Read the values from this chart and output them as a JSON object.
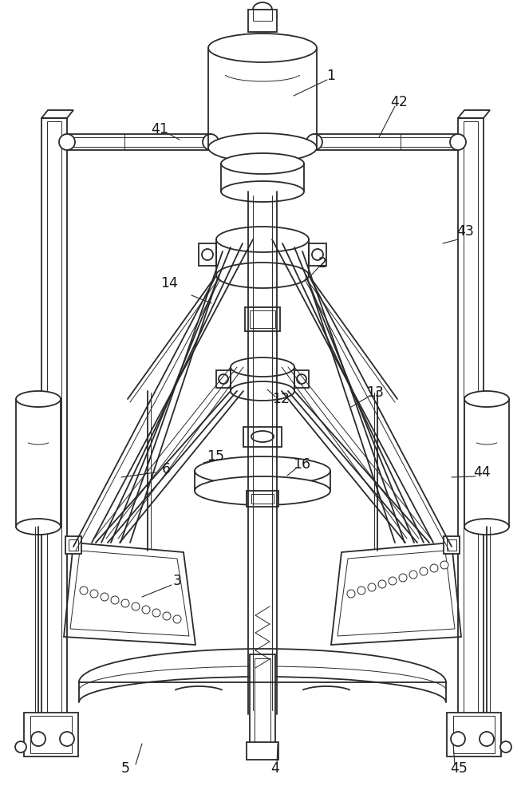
{
  "bg_color": "#ffffff",
  "line_color": "#2a2a2a",
  "label_color": "#1a1a1a",
  "fig_width": 6.58,
  "fig_height": 10.0
}
